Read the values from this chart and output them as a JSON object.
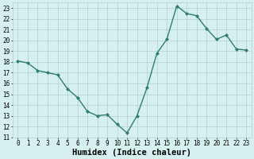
{
  "x": [
    0,
    1,
    2,
    3,
    4,
    5,
    6,
    7,
    8,
    9,
    10,
    11,
    12,
    13,
    14,
    15,
    16,
    17,
    18,
    19,
    20,
    21,
    22,
    23
  ],
  "y": [
    18.1,
    17.9,
    17.2,
    17.0,
    16.8,
    15.5,
    14.7,
    13.4,
    13.0,
    13.1,
    12.2,
    11.4,
    13.0,
    15.6,
    18.8,
    20.1,
    23.2,
    22.5,
    22.3,
    21.1,
    20.1,
    20.5,
    19.2,
    19.1
  ],
  "line_color": "#2e7d6e",
  "marker": "D",
  "marker_size": 2.0,
  "bg_color": "#d6f0f0",
  "grid_color": "#b0d0d0",
  "xlabel": "Humidex (Indice chaleur)",
  "xlim": [
    -0.5,
    23.5
  ],
  "ylim": [
    11,
    23.5
  ],
  "yticks": [
    11,
    12,
    13,
    14,
    15,
    16,
    17,
    18,
    19,
    20,
    21,
    22,
    23
  ],
  "xticks": [
    0,
    1,
    2,
    3,
    4,
    5,
    6,
    7,
    8,
    9,
    10,
    11,
    12,
    13,
    14,
    15,
    16,
    17,
    18,
    19,
    20,
    21,
    22,
    23
  ],
  "tick_fontsize": 5.5,
  "xlabel_fontsize": 7.5,
  "linewidth": 1.0
}
